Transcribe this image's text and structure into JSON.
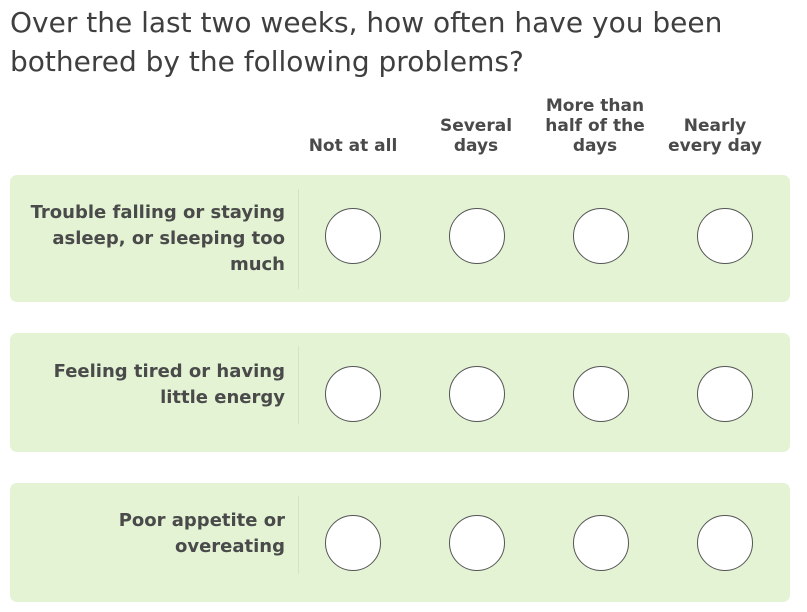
{
  "question": {
    "line1": "Over the last two weeks, how often have you been",
    "line2": "bothered by the following problems?"
  },
  "columns": [
    {
      "lines": [
        "Not at all"
      ]
    },
    {
      "lines": [
        "Several",
        "days"
      ]
    },
    {
      "lines": [
        "More than",
        "half of the",
        "days"
      ]
    },
    {
      "lines": [
        "Nearly",
        "every day"
      ]
    }
  ],
  "rows": [
    {
      "lines": [
        "Trouble falling or staying",
        "asleep, or sleeping too",
        "much"
      ]
    },
    {
      "lines": [
        "Feeling tired or having",
        "little energy"
      ]
    },
    {
      "lines": [
        "Poor appetite or",
        "overeating"
      ]
    }
  ],
  "colors": {
    "row_background": "#e3f3d4",
    "radio_border": "#555555"
  }
}
